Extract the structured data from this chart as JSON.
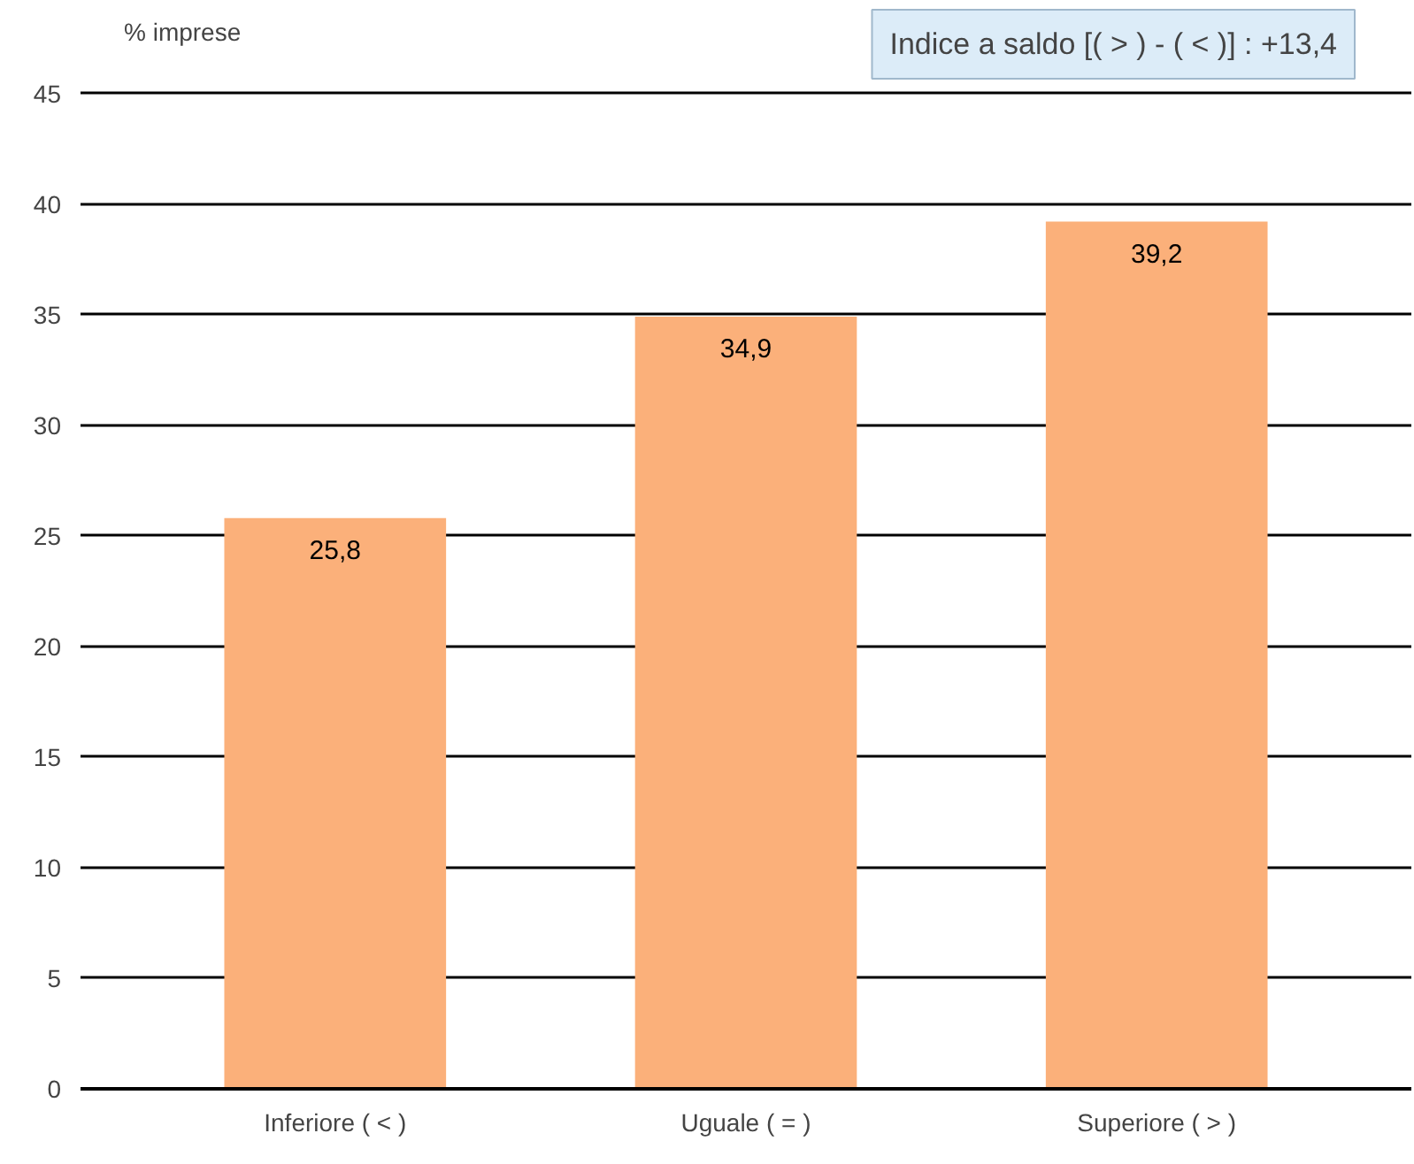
{
  "chart_data": {
    "type": "bar",
    "categories": [
      "Inferiore ( < )",
      "Uguale ( = )",
      "Superiore ( > )"
    ],
    "series": [
      {
        "name": "% imprese",
        "color": "#fbb07a",
        "values": [
          25.8,
          34.9,
          39.2
        ]
      }
    ],
    "ylim": [
      0,
      45
    ],
    "yticks": [
      0,
      5,
      10,
      15,
      20,
      25,
      30,
      35,
      40,
      45
    ],
    "grid": "y",
    "legend": "top left",
    "value_labels": [
      "25,8",
      "34,9",
      "39,2"
    ],
    "annotations": [
      "Indice a saldo [( > ) - ( < )] : +13,4"
    ]
  }
}
